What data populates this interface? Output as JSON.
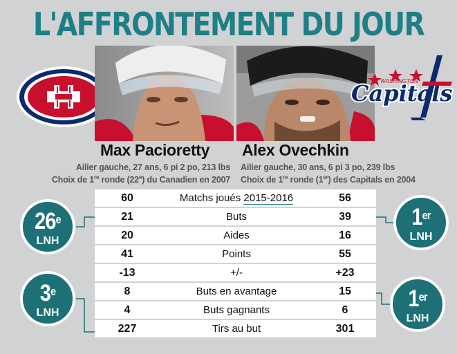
{
  "title": "L'AFFRONTEMENT DU JOUR",
  "colors": {
    "teal": "#1e7f86",
    "badge": "#1c7076",
    "habs_red": "#c8102e",
    "habs_blue": "#0a2a6b",
    "caps_navy": "#0a2a6b"
  },
  "left_player": {
    "name": "Max Pacioretty",
    "info_line1": "Ailier gauche, 27 ans, 6 pi 2 po, 213 lbs",
    "info_line2_pre": "Choix de 1",
    "info_line2_sup": "re",
    "info_line2_post": " ronde (22",
    "info_line2_sup2": "e",
    "info_line2_end": ") du Canadien en 2007",
    "logo": "canadiens-logo"
  },
  "right_player": {
    "name": "Alex Ovechkin",
    "info_line1": "Ailier gauche, 30 ans, 6 pi 3 po, 239 lbs",
    "info_line2_pre": "Choix de 1",
    "info_line2_sup": "re",
    "info_line2_post": " ronde (1",
    "info_line2_sup2": "er",
    "info_line2_end": ") des Capitals en 2004",
    "logo": "capitals-logo",
    "logo_text": "Capitals",
    "logo_small_text": "WASHINGTON"
  },
  "stats": [
    {
      "left": "60",
      "label_pre": "Matchs joués ",
      "label_season": "2015-2016",
      "right": "56"
    },
    {
      "left": "21",
      "label": "Buts",
      "right": "39"
    },
    {
      "left": "20",
      "label": "Aides",
      "right": "16"
    },
    {
      "left": "41",
      "label": "Points",
      "right": "55"
    },
    {
      "left": "-13",
      "label": "+/-",
      "right": "+23"
    },
    {
      "left": "8",
      "label": "Buts en avantage",
      "right": "15"
    },
    {
      "left": "4",
      "label": "Buts gagnants",
      "right": "6"
    },
    {
      "left": "227",
      "label": "Tirs au but",
      "right": "301"
    }
  ],
  "badges": [
    {
      "rank": "26",
      "sup": "e",
      "league": "LNH"
    },
    {
      "rank": "3",
      "sup": "e",
      "league": "LNH"
    },
    {
      "rank": "1",
      "sup": "er",
      "league": "LNH"
    },
    {
      "rank": "1",
      "sup": "er",
      "league": "LNH"
    }
  ]
}
